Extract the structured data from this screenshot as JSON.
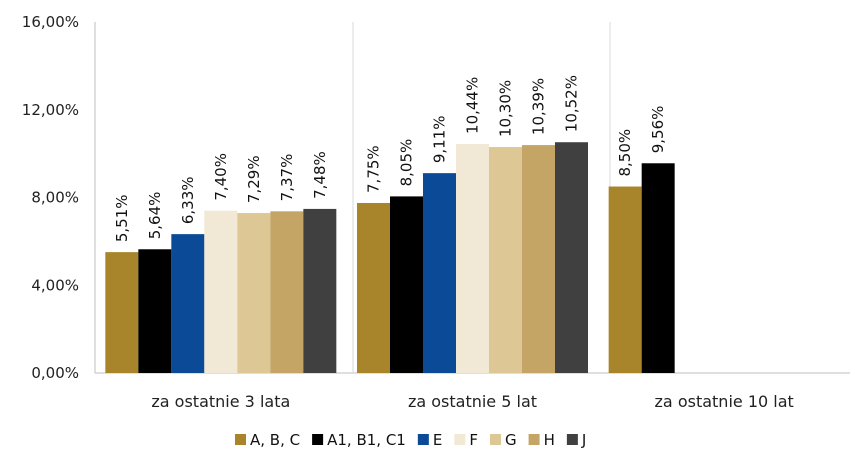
{
  "chart_data": {
    "type": "bar",
    "categories": [
      "za ostatnie 3 lata",
      "za ostatnie 5 lat",
      "za ostatnie 10 lat"
    ],
    "series": [
      {
        "name": "A, B, C",
        "color": "#a8842b",
        "values": [
          5.51,
          7.75,
          8.5
        ],
        "labels": [
          "5,51%",
          "7,75%",
          "8,50%"
        ]
      },
      {
        "name": "A1, B1, C1",
        "color": "#000000",
        "values": [
          5.64,
          8.05,
          9.56
        ],
        "labels": [
          "5,64%",
          "8,05%",
          "9,56%"
        ]
      },
      {
        "name": "E",
        "color": "#0a4a96",
        "values": [
          6.33,
          9.11,
          null
        ],
        "labels": [
          "6,33%",
          "9,11%",
          ""
        ]
      },
      {
        "name": "F",
        "color": "#f1e9d5",
        "values": [
          7.4,
          10.44,
          null
        ],
        "labels": [
          "7,40%",
          "10,44%",
          ""
        ]
      },
      {
        "name": "G",
        "color": "#dcc795",
        "values": [
          7.29,
          10.3,
          null
        ],
        "labels": [
          "7,29%",
          "10,30%",
          ""
        ]
      },
      {
        "name": "H",
        "color": "#c4a566",
        "values": [
          7.37,
          10.39,
          null
        ],
        "labels": [
          "7,37%",
          "10,39%",
          ""
        ]
      },
      {
        "name": "J",
        "color": "#404040",
        "values": [
          7.48,
          10.52,
          null
        ],
        "labels": [
          "7,48%",
          "10,52%",
          ""
        ]
      }
    ],
    "y_ticks": [
      "0,00%",
      "4,00%",
      "8,00%",
      "12,00%",
      "16,00%"
    ],
    "ylim": [
      0,
      16
    ],
    "legend_position": "bottom",
    "grid": false
  }
}
